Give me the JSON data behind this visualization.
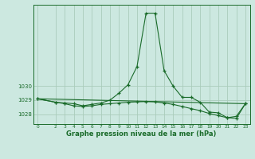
{
  "background_color": "#cce8e0",
  "grid_color": "#aaccbb",
  "line_color": "#1a6b2a",
  "xlabel": "Graphe pression niveau de la mer (hPa)",
  "ylabel_ticks": [
    1028,
    1029,
    1030
  ],
  "xlim": [
    -0.5,
    23.5
  ],
  "ylim": [
    1027.3,
    1035.8
  ],
  "xticks": [
    0,
    2,
    3,
    4,
    5,
    6,
    7,
    8,
    9,
    10,
    11,
    12,
    13,
    14,
    15,
    16,
    17,
    18,
    19,
    20,
    21,
    22,
    23
  ],
  "line1_x": [
    0,
    2,
    3,
    4,
    5,
    6,
    7,
    8,
    9,
    10,
    11,
    12,
    13,
    14,
    15,
    16,
    17,
    18,
    19,
    20,
    21,
    22,
    23
  ],
  "line1_y": [
    1029.1,
    1028.85,
    1028.8,
    1028.75,
    1028.6,
    1028.7,
    1028.8,
    1029.0,
    1029.5,
    1030.1,
    1031.4,
    1035.2,
    1035.2,
    1031.1,
    1030.0,
    1029.2,
    1029.2,
    1028.85,
    1028.15,
    1028.1,
    1027.75,
    1027.85,
    1028.75
  ],
  "line2_x": [
    0,
    2,
    3,
    4,
    5,
    6,
    7,
    8,
    9,
    10,
    11,
    12,
    13,
    14,
    15,
    16,
    17,
    18,
    19,
    20,
    21,
    22,
    23
  ],
  "line2_y": [
    1029.1,
    1028.85,
    1028.75,
    1028.6,
    1028.55,
    1028.6,
    1028.7,
    1028.75,
    1028.8,
    1028.85,
    1028.88,
    1028.9,
    1028.88,
    1028.8,
    1028.7,
    1028.55,
    1028.4,
    1028.25,
    1028.05,
    1027.9,
    1027.75,
    1027.7,
    1028.75
  ],
  "line3_x": [
    0,
    23
  ],
  "line3_y": [
    1029.1,
    1028.75
  ]
}
